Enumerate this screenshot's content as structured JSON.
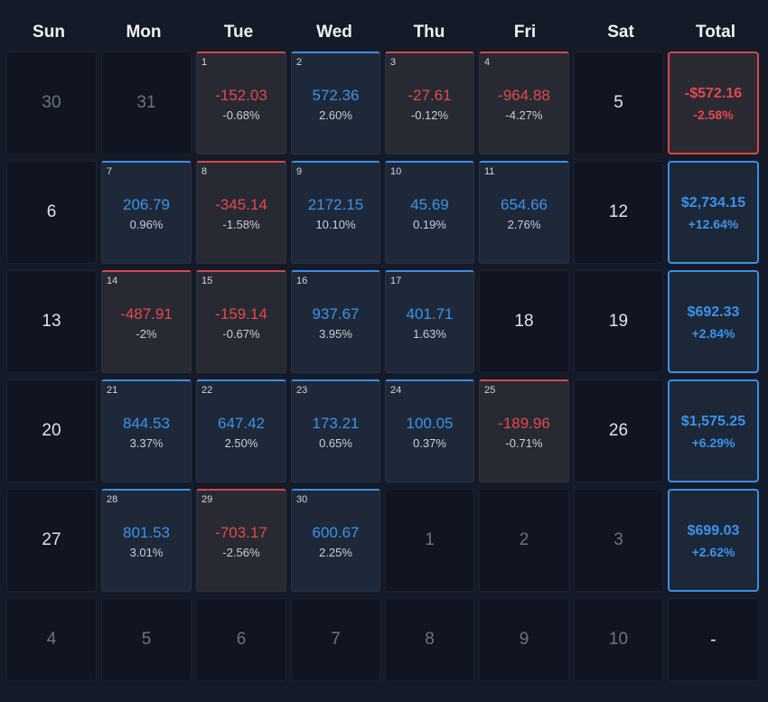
{
  "headers": [
    "Sun",
    "Mon",
    "Tue",
    "Wed",
    "Thu",
    "Fri",
    "Sat",
    "Total"
  ],
  "weeks": [
    {
      "days": [
        {
          "day": "30",
          "kind": "muted"
        },
        {
          "day": "31",
          "kind": "muted"
        },
        {
          "day": "1",
          "kind": "down",
          "amount": "-152.03",
          "pct": "-0.68%"
        },
        {
          "day": "2",
          "kind": "up",
          "amount": "572.36",
          "pct": "2.60%"
        },
        {
          "day": "3",
          "kind": "down",
          "amount": "-27.61",
          "pct": "-0.12%"
        },
        {
          "day": "4",
          "kind": "down",
          "amount": "-964.88",
          "pct": "-4.27%"
        },
        {
          "day": "5",
          "kind": "plain"
        }
      ],
      "total": {
        "kind": "down",
        "amount": "-$572.16",
        "pct": "-2.58%"
      }
    },
    {
      "days": [
        {
          "day": "6",
          "kind": "plain"
        },
        {
          "day": "7",
          "kind": "up",
          "amount": "206.79",
          "pct": "0.96%"
        },
        {
          "day": "8",
          "kind": "down",
          "amount": "-345.14",
          "pct": "-1.58%"
        },
        {
          "day": "9",
          "kind": "up",
          "amount": "2172.15",
          "pct": "10.10%"
        },
        {
          "day": "10",
          "kind": "up",
          "amount": "45.69",
          "pct": "0.19%"
        },
        {
          "day": "11",
          "kind": "up",
          "amount": "654.66",
          "pct": "2.76%"
        },
        {
          "day": "12",
          "kind": "plain"
        }
      ],
      "total": {
        "kind": "up",
        "amount": "$2,734.15",
        "pct": "+12.64%"
      }
    },
    {
      "days": [
        {
          "day": "13",
          "kind": "plain"
        },
        {
          "day": "14",
          "kind": "down",
          "amount": "-487.91",
          "pct": "-2%"
        },
        {
          "day": "15",
          "kind": "down",
          "amount": "-159.14",
          "pct": "-0.67%"
        },
        {
          "day": "16",
          "kind": "up",
          "amount": "937.67",
          "pct": "3.95%"
        },
        {
          "day": "17",
          "kind": "up",
          "amount": "401.71",
          "pct": "1.63%"
        },
        {
          "day": "18",
          "kind": "plain"
        },
        {
          "day": "19",
          "kind": "plain"
        }
      ],
      "total": {
        "kind": "up",
        "amount": "$692.33",
        "pct": "+2.84%"
      }
    },
    {
      "days": [
        {
          "day": "20",
          "kind": "plain"
        },
        {
          "day": "21",
          "kind": "up",
          "amount": "844.53",
          "pct": "3.37%"
        },
        {
          "day": "22",
          "kind": "up",
          "amount": "647.42",
          "pct": "2.50%"
        },
        {
          "day": "23",
          "kind": "up",
          "amount": "173.21",
          "pct": "0.65%"
        },
        {
          "day": "24",
          "kind": "up",
          "amount": "100.05",
          "pct": "0.37%"
        },
        {
          "day": "25",
          "kind": "down",
          "amount": "-189.96",
          "pct": "-0.71%"
        },
        {
          "day": "26",
          "kind": "plain"
        }
      ],
      "total": {
        "kind": "up",
        "amount": "$1,575.25",
        "pct": "+6.29%"
      }
    },
    {
      "days": [
        {
          "day": "27",
          "kind": "plain"
        },
        {
          "day": "28",
          "kind": "up",
          "amount": "801.53",
          "pct": "3.01%"
        },
        {
          "day": "29",
          "kind": "down",
          "amount": "-703.17",
          "pct": "-2.56%"
        },
        {
          "day": "30",
          "kind": "up",
          "amount": "600.67",
          "pct": "2.25%"
        },
        {
          "day": "1",
          "kind": "muted"
        },
        {
          "day": "2",
          "kind": "muted"
        },
        {
          "day": "3",
          "kind": "muted"
        }
      ],
      "total": {
        "kind": "up",
        "amount": "$699.03",
        "pct": "+2.62%"
      }
    },
    {
      "days": [
        {
          "day": "4",
          "kind": "muted"
        },
        {
          "day": "5",
          "kind": "muted"
        },
        {
          "day": "6",
          "kind": "muted"
        },
        {
          "day": "7",
          "kind": "muted"
        },
        {
          "day": "8",
          "kind": "muted"
        },
        {
          "day": "9",
          "kind": "muted"
        },
        {
          "day": "10",
          "kind": "muted"
        }
      ],
      "total": {
        "kind": "none",
        "placeholder": "-"
      }
    }
  ],
  "colors": {
    "positive": "#3b93ea",
    "negative": "#e5484d",
    "background": "#141a27"
  }
}
